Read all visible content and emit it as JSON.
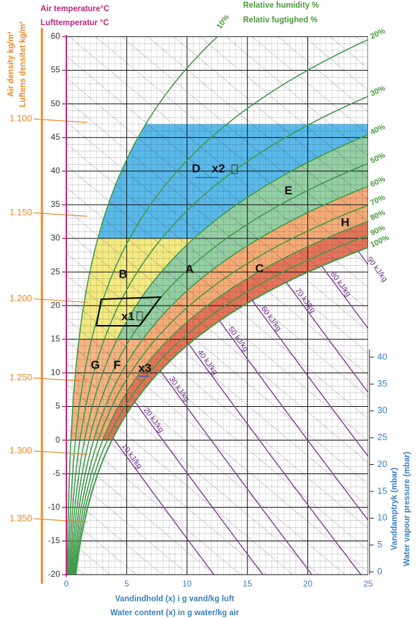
{
  "chart_data": {
    "type": "psychrometric",
    "y_label": [
      "Air temperature°C",
      "Lufttemperatur °C"
    ],
    "density_label": [
      "Air density kg/m³",
      "Luftens densitet kg/m³"
    ],
    "rh_label": [
      "Relative humidity %",
      "Relativ fugtighed %"
    ],
    "x_label": [
      "Vandindhold (x) i g vand/kg luft",
      "Water content (x) in g water/kg air"
    ],
    "y2_label": [
      "Vanddamptryk (mbar)",
      "Water vapour pressure (mbar)"
    ],
    "xlim": [
      0,
      25
    ],
    "xticks": [
      0,
      5,
      10,
      15,
      20,
      25
    ],
    "ylim": [
      -20,
      60
    ],
    "yticks": [
      -20,
      -15,
      -10,
      -5,
      0,
      5,
      10,
      15,
      20,
      25,
      30,
      35,
      40,
      45,
      50,
      55,
      60
    ],
    "y2lim": [
      0,
      40
    ],
    "y2ticks": [
      0,
      5,
      10,
      15,
      20,
      25,
      30,
      35,
      40
    ],
    "density_ticks": [
      {
        "value": 1.1,
        "label": "1.100"
      },
      {
        "value": 1.15,
        "label": "1.150"
      },
      {
        "value": 1.2,
        "label": "1.200"
      },
      {
        "value": 1.25,
        "label": "1.250"
      },
      {
        "value": 1.3,
        "label": "1.300"
      },
      {
        "value": 1.35,
        "label": "1.350"
      }
    ],
    "rh_curves": [
      {
        "value": 10,
        "label": "10%"
      },
      {
        "value": 20,
        "label": "20%"
      },
      {
        "value": 30,
        "label": "30%"
      },
      {
        "value": 40,
        "label": "40%"
      },
      {
        "value": 50,
        "label": "50%"
      },
      {
        "value": 60,
        "label": "60%"
      },
      {
        "value": 70,
        "label": "70%"
      },
      {
        "value": 80,
        "label": "80%"
      },
      {
        "value": 90,
        "label": "90%"
      },
      {
        "value": 100,
        "label": "100%"
      }
    ],
    "enthalpy_lines": [
      {
        "value": 10,
        "label": "10 kJ/kg"
      },
      {
        "value": 20,
        "label": "20 kJ/kg"
      },
      {
        "value": 30,
        "label": "30 kJ/kg"
      },
      {
        "value": 40,
        "label": "40 kJ/kg"
      },
      {
        "value": 50,
        "label": "50 kJ/kg"
      },
      {
        "value": 60,
        "label": "60 kJ/kg"
      },
      {
        "value": 70,
        "label": "70 kJ/kg"
      },
      {
        "value": 80,
        "label": "80 kJ/kg"
      },
      {
        "value": 90,
        "label": "90 kJ/kg"
      }
    ],
    "zones": [
      {
        "t": [
          30,
          47
        ],
        "rh": [
          10,
          40
        ],
        "color": "#4cb4e8"
      },
      {
        "t": [
          15,
          30
        ],
        "rh": [
          10,
          40
        ],
        "color": "#f3e877"
      },
      {
        "t": [
          15,
          47
        ],
        "rh": [
          40,
          60
        ],
        "color": "#8ccb9c"
      },
      {
        "t": [
          0,
          15
        ],
        "rh": [
          10,
          60
        ],
        "color": "#f6ae78"
      },
      {
        "t": [
          0,
          40
        ],
        "rh": [
          60,
          80
        ],
        "color": "#f4a46c"
      },
      {
        "t": [
          0,
          40
        ],
        "rh": [
          80,
          100
        ],
        "color": "#e2694c"
      }
    ],
    "annotations": [
      {
        "text": "D",
        "x": 10.75,
        "t": 40.3
      },
      {
        "text": "x2",
        "x": 12.6,
        "t": 40.3
      },
      {
        "text": "E",
        "x": 18.4,
        "t": 37
      },
      {
        "text": "H",
        "x": 23.1,
        "t": 32.3
      },
      {
        "text": "A",
        "x": 10.2,
        "t": 25.3
      },
      {
        "text": "C",
        "x": 16,
        "t": 25.4
      },
      {
        "text": "B",
        "x": 4.7,
        "t": 24.6
      },
      {
        "text": "x1",
        "x": 5.1,
        "t": 18.3
      },
      {
        "text": "G",
        "x": 2.4,
        "t": 11.1
      },
      {
        "text": "F",
        "x": 4.2,
        "t": 11.1
      },
      {
        "text": "x3",
        "x": 6.5,
        "t": 10.6
      }
    ]
  }
}
